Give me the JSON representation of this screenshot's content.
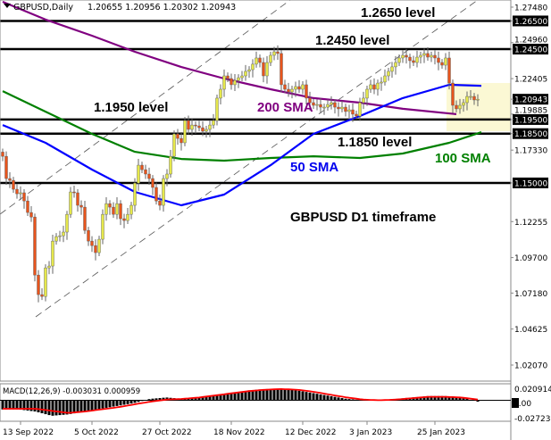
{
  "header": {
    "symbol_timeframe": "GBPUSD,Daily",
    "ohlc": "1.20655 1.20956 1.20302 1.20943"
  },
  "chart_data": {
    "type": "candlestick",
    "title": "GBPUSD D1 timeframe",
    "ylim": [
      1.0207,
      1.2748
    ],
    "closes": [
      1.1689,
      1.1531,
      1.1518,
      1.1455,
      1.1423,
      1.143,
      1.1372,
      1.129,
      1.1258,
      1.0846,
      1.0707,
      1.0694,
      1.0897,
      1.091,
      1.1087,
      1.1119,
      1.1125,
      1.1151,
      1.1277,
      1.1436,
      1.143,
      1.1341,
      1.1328,
      1.1163,
      1.1087,
      1.1055,
      1.1005,
      1.11,
      1.1277,
      1.1353,
      1.1328,
      1.1277,
      1.1353,
      1.1246,
      1.1233,
      1.1277,
      1.1341,
      1.1499,
      1.1626,
      1.1594,
      1.1563,
      1.1531,
      1.1468,
      1.1372,
      1.1341,
      1.1531,
      1.1563,
      1.1689,
      1.1848,
      1.1816,
      1.1785,
      1.1943,
      1.188,
      1.1911,
      1.1905,
      1.1892,
      1.1867,
      1.188,
      1.1911,
      1.1943,
      1.2102,
      1.2165,
      1.226,
      1.2241,
      1.2197,
      1.2228,
      1.2247,
      1.226,
      1.2292,
      1.2304,
      1.2343,
      1.2387,
      1.2355,
      1.226,
      1.2355,
      1.2406,
      1.2431,
      1.2419,
      1.2197,
      1.2165,
      1.2146,
      1.2165,
      1.2184,
      1.2165,
      1.2197,
      1.2102,
      1.207,
      1.2051,
      1.2057,
      1.2038,
      1.2038,
      1.2057,
      1.207,
      1.2038,
      1.2026,
      1.2038,
      1.2007,
      1.2019,
      1.1988,
      1.1975,
      1.207,
      1.2102,
      1.2165,
      1.2197,
      1.2165,
      1.2209,
      1.2216,
      1.226,
      1.2292,
      1.2324,
      1.2355,
      1.2387,
      1.2406,
      1.2393,
      1.2368,
      1.2355,
      1.2393,
      1.2406,
      1.2419,
      1.2393,
      1.2406,
      1.2387,
      1.2355,
      1.2336,
      1.2387,
      1.2209,
      1.2051,
      1.2026,
      1.2051,
      1.207,
      1.2114,
      1.2114,
      1.2089,
      1.20943
    ],
    "levels": [
      {
        "value": 1.265,
        "label": "1.2650 level"
      },
      {
        "value": 1.245,
        "label": "1.2450 level"
      },
      {
        "value": 1.195,
        "label": "1.1950 level"
      },
      {
        "value": 1.185,
        "label": "1.1850 level"
      },
      {
        "value": 1.15,
        "label": ""
      }
    ],
    "sma": [
      {
        "name": "200 SMA",
        "color": "#800080",
        "points": [
          [
            0,
            1.2786
          ],
          [
            12,
            1.266
          ],
          [
            25,
            1.2545
          ],
          [
            37,
            1.2431
          ],
          [
            50,
            1.2323
          ],
          [
            62,
            1.2241
          ],
          [
            75,
            1.2165
          ],
          [
            87,
            1.2102
          ],
          [
            100,
            1.207
          ],
          [
            112,
            1.2026
          ],
          [
            127,
            1.1988
          ]
        ]
      },
      {
        "name": "100 SMA",
        "color": "#008000",
        "points": [
          [
            0,
            1.2152
          ],
          [
            12,
            1.2006
          ],
          [
            25,
            1.1848
          ],
          [
            37,
            1.1721
          ],
          [
            50,
            1.167
          ],
          [
            62,
            1.1658
          ],
          [
            75,
            1.1677
          ],
          [
            87,
            1.1689
          ],
          [
            100,
            1.1677
          ],
          [
            112,
            1.1709
          ],
          [
            125,
            1.1785
          ],
          [
            134,
            1.186
          ]
        ]
      },
      {
        "name": "50 SMA",
        "color": "#0000ff",
        "points": [
          [
            0,
            1.1911
          ],
          [
            12,
            1.1785
          ],
          [
            25,
            1.1595
          ],
          [
            37,
            1.1436
          ],
          [
            50,
            1.1341
          ],
          [
            62,
            1.1417
          ],
          [
            75,
            1.1626
          ],
          [
            87,
            1.1848
          ],
          [
            100,
            1.1975
          ],
          [
            112,
            1.2102
          ],
          [
            125,
            1.2197
          ],
          [
            134,
            1.219
          ]
        ]
      }
    ],
    "price_axis": [
      {
        "label": "1.27480",
        "value": 1.2748,
        "highlight": false
      },
      {
        "label": "1.26500",
        "value": 1.265,
        "highlight": true
      },
      {
        "label": "1.24960",
        "value": 1.2496,
        "highlight": false
      },
      {
        "label": "1.24500",
        "value": 1.245,
        "highlight": true
      },
      {
        "label": "1.22405",
        "value": 1.22405,
        "highlight": false
      },
      {
        "label": "1.20943",
        "value": 1.20943,
        "highlight": true
      },
      {
        "label": "1.19885",
        "value": 1.19885,
        "highlight": false
      },
      {
        "label": "1.19500",
        "value": 1.195,
        "highlight": true
      },
      {
        "label": "1.18500",
        "value": 1.185,
        "highlight": true
      },
      {
        "label": "1.17330",
        "value": 1.1733,
        "highlight": false
      },
      {
        "label": "1.15000",
        "value": 1.15,
        "highlight": true
      },
      {
        "label": "1.12255",
        "value": 1.12255,
        "highlight": false
      },
      {
        "label": "1.09700",
        "value": 1.097,
        "highlight": false
      },
      {
        "label": "1.07180",
        "value": 1.0718,
        "highlight": false
      },
      {
        "label": "1.04625",
        "value": 1.04625,
        "highlight": false
      },
      {
        "label": "1.02070",
        "value": 1.0207,
        "highlight": false
      }
    ],
    "date_axis": [
      {
        "label": "13 Sep 2022",
        "bar": 5
      },
      {
        "label": "5 Oct 2022",
        "bar": 25
      },
      {
        "label": "27 Oct 2022",
        "bar": 44
      },
      {
        "label": "18 Nov 2022",
        "bar": 64
      },
      {
        "label": "12 Dec 2022",
        "bar": 84
      },
      {
        "label": "3 Jan 2023",
        "bar": 102
      },
      {
        "label": "25 Jan 2023",
        "bar": 121
      }
    ],
    "annotations": {
      "sma200": "200 SMA",
      "sma50": "50 SMA",
      "sma100": "100 SMA"
    },
    "macd": {
      "label": "MACD(12,26,9) -0.003031 0.000959",
      "ylim": [
        -0.027239,
        0.020914
      ],
      "axis": [
        "0.020914",
        "0.00",
        "-0.027239"
      ],
      "histogram": [
        -0.013,
        -0.013,
        -0.016,
        -0.022,
        -0.02,
        -0.016,
        -0.012,
        -0.008,
        -0.004,
        0.002,
        0.004,
        0.002,
        0.004,
        0.008,
        0.01,
        0.014,
        0.016,
        0.016,
        0.014,
        0.01,
        0.006,
        0.002,
        0.0,
        0.0,
        0.002,
        0.004,
        0.006,
        0.006,
        0.004,
        -0.002
      ],
      "signal": [
        -0.012,
        -0.012,
        -0.012,
        -0.015,
        -0.018,
        -0.016,
        -0.013,
        -0.01,
        -0.006,
        -0.002,
        0.001,
        0.002,
        0.004,
        0.007,
        0.01,
        0.013,
        0.015,
        0.016,
        0.015,
        0.012,
        0.008,
        0.004,
        0.001,
        0.0,
        0.001,
        0.003,
        0.005,
        0.005,
        0.004,
        0.001
      ],
      "signal_color": "#ff0000"
    },
    "colors": {
      "bull": "#e6e84a",
      "bear": "#e8541c",
      "highlight_zone": "#fbf8d4"
    }
  }
}
